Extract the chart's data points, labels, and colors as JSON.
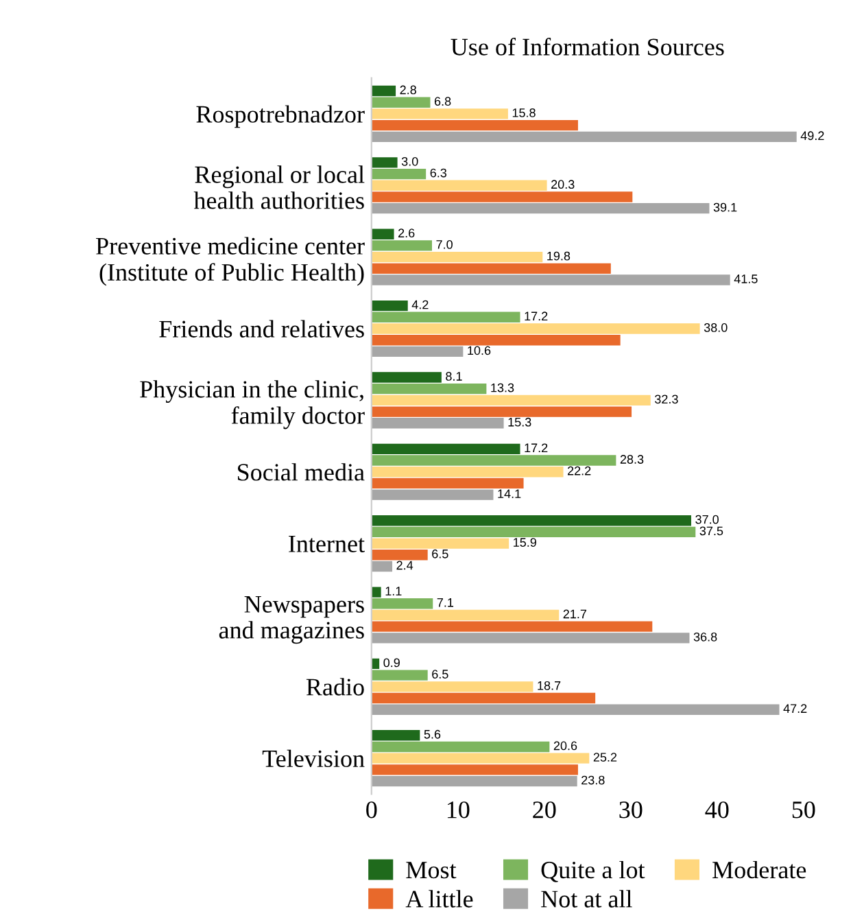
{
  "chart_data": {
    "type": "bar",
    "orientation": "horizontal",
    "title": "Use of Information Sources",
    "categories": [
      "Rospotrebnadzor",
      "Regional or local\nhealth authorities",
      "Preventive medicine center\n(Institute of Public Health)",
      "Friends and relatives",
      "Physician in the clinic,\nfamily doctor",
      "Social media",
      "Internet",
      "Newspapers\nand magazines",
      "Radio",
      "Television"
    ],
    "series": [
      {
        "name": "Most",
        "color": "#1f6a1c",
        "values": [
          2.8,
          3.0,
          2.6,
          4.2,
          8.1,
          17.2,
          37.0,
          1.1,
          0.9,
          5.6
        ],
        "value_labels": [
          "2.8",
          "3.0",
          "2.6",
          "4.2",
          "8.1",
          "17.2",
          "37.0",
          "1.1",
          "0.9",
          "5.6"
        ]
      },
      {
        "name": "Quite a lot",
        "color": "#7db55e",
        "values": [
          6.8,
          6.3,
          7.0,
          17.2,
          13.3,
          28.3,
          37.5,
          7.1,
          6.5,
          20.6
        ],
        "value_labels": [
          "6.8",
          "6.3",
          "7.0",
          "17.2",
          "13.3",
          "28.3",
          "37.5",
          "7.1",
          "6.5",
          "20.6"
        ]
      },
      {
        "name": "Moderate",
        "color": "#ffd77e",
        "values": [
          15.8,
          20.3,
          19.8,
          38.0,
          32.3,
          22.2,
          15.9,
          21.7,
          18.7,
          25.2
        ],
        "value_labels": [
          "15.8",
          "20.3",
          "19.8",
          "38.0",
          "32.3",
          "22.2",
          "15.9",
          "21.7",
          "18.7",
          "25.2"
        ]
      },
      {
        "name": "A little",
        "color": "#e8692b",
        "values": [
          23.9,
          30.2,
          27.7,
          28.8,
          30.1,
          17.6,
          6.5,
          32.5,
          25.9,
          23.9
        ],
        "value_labels": [
          null,
          null,
          null,
          null,
          null,
          null,
          "6.5",
          null,
          null,
          null
        ]
      },
      {
        "name": "Not at all",
        "color": "#a6a6a6",
        "values": [
          49.2,
          39.1,
          41.5,
          10.6,
          15.3,
          14.1,
          2.4,
          36.8,
          47.2,
          23.8
        ],
        "value_labels": [
          "49.2",
          "39.1",
          "41.5",
          "10.6",
          "15.3",
          "14.1",
          "2.4",
          "36.8",
          "47.2",
          "23.8"
        ]
      }
    ],
    "xlim": [
      0,
      50
    ],
    "xticks": [
      0,
      10,
      20,
      30,
      40,
      50
    ],
    "grid": false,
    "legend": "bottom"
  }
}
